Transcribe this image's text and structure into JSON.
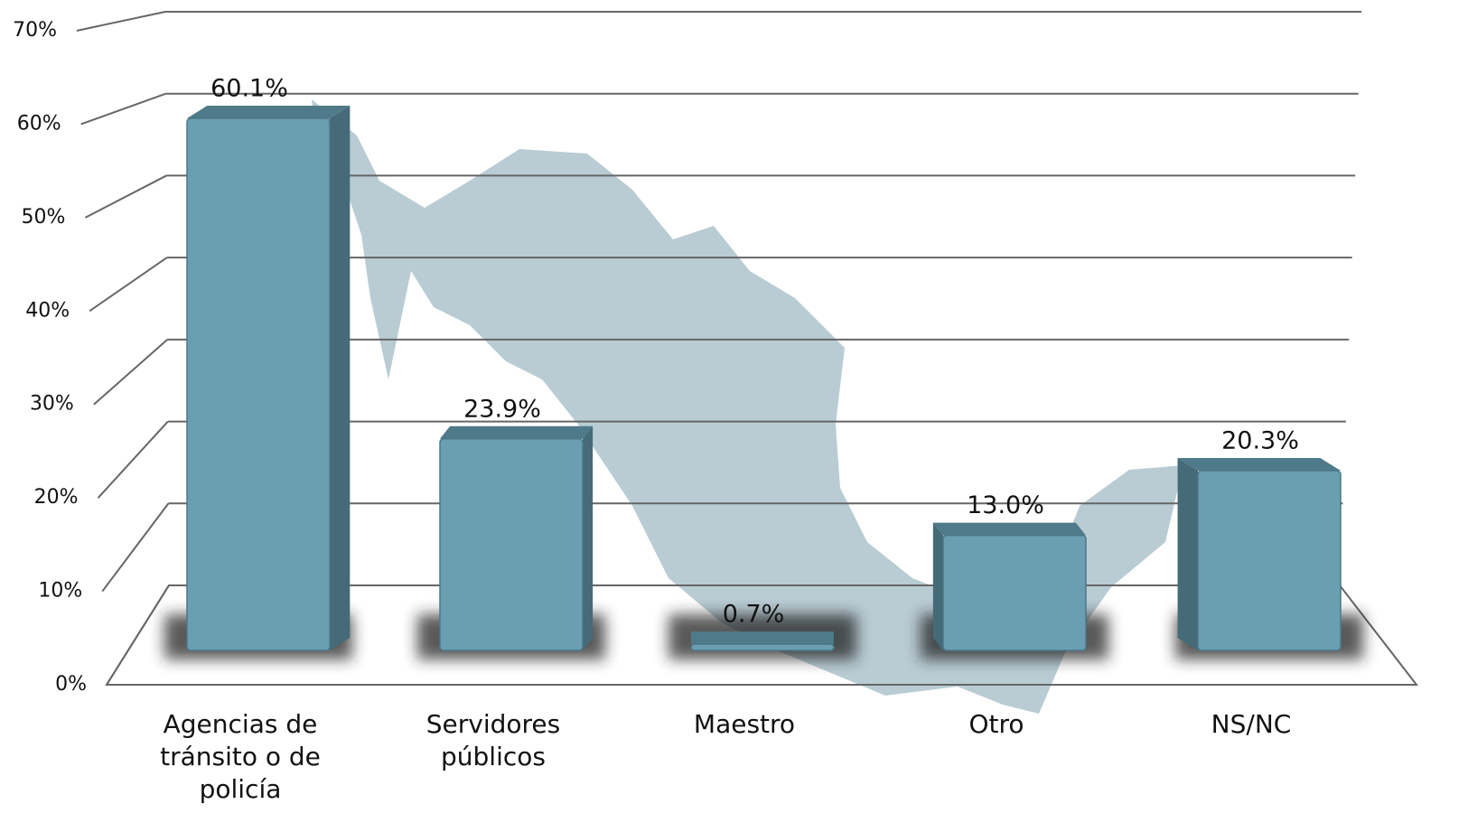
{
  "chart_data": {
    "type": "bar3d",
    "categories": [
      "Agencias de tránsito o de policía",
      "Servidores públicos",
      "Maestro",
      "Otro",
      "NS/NC"
    ],
    "values": [
      60.1,
      23.9,
      0.7,
      13.0,
      20.3
    ],
    "value_labels": [
      "60.1%",
      "23.9%",
      "0.7%",
      "13.0%",
      "20.3%"
    ],
    "color": "#6a9fb2",
    "ylim": [
      0,
      70
    ],
    "yticks": [
      {
        "value": 0,
        "label": "0%"
      },
      {
        "value": 10,
        "label": "10%"
      },
      {
        "value": 20,
        "label": "20%"
      },
      {
        "value": 30,
        "label": "30%"
      },
      {
        "value": 40,
        "label": "40%"
      },
      {
        "value": 50,
        "label": "50%"
      },
      {
        "value": 60,
        "label": "60%"
      },
      {
        "value": 70,
        "label": "70%"
      }
    ],
    "grid": true
  }
}
